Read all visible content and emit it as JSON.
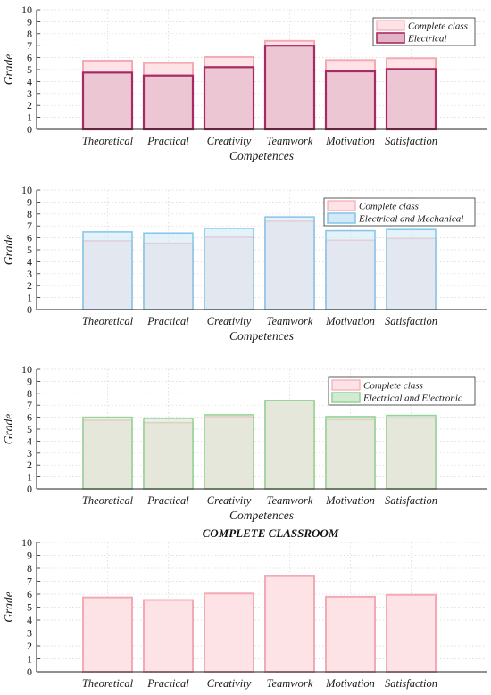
{
  "chart_data": [
    {
      "type": "bar",
      "title": "",
      "xlabel": "Competences",
      "ylabel": "Grade",
      "ylim": [
        0,
        10
      ],
      "yticks": [
        0,
        1,
        2,
        3,
        4,
        5,
        6,
        7,
        8,
        9,
        10
      ],
      "grid": true,
      "legend_position": "top-right",
      "categories": [
        "Theoretical",
        "Practical",
        "Creativity",
        "Teamwork",
        "Motivation",
        "Satisfaction"
      ],
      "series": [
        {
          "name": "Complete class",
          "values": [
            5.75,
            5.55,
            6.05,
            7.4,
            5.8,
            5.95
          ],
          "fill": "#fde3e6",
          "stroke": "#f4aab5",
          "stroke_width": 2
        },
        {
          "name": "Electrical",
          "values": [
            4.75,
            4.5,
            5.2,
            7.0,
            4.85,
            5.05
          ],
          "fill": "#e2b3c6",
          "stroke": "#a82a63",
          "stroke_width": 2.2
        }
      ]
    },
    {
      "type": "bar",
      "title": "",
      "xlabel": "Competences",
      "ylabel": "Grade",
      "ylim": [
        0,
        10
      ],
      "yticks": [
        0,
        1,
        2,
        3,
        4,
        5,
        6,
        7,
        8,
        9,
        10
      ],
      "grid": true,
      "legend_position": "top-right",
      "categories": [
        "Theoretical",
        "Practical",
        "Creativity",
        "Teamwork",
        "Motivation",
        "Satisfaction"
      ],
      "series": [
        {
          "name": "Complete class",
          "values": [
            5.75,
            5.55,
            6.05,
            7.4,
            5.8,
            5.95
          ],
          "fill": "#fde3e6",
          "stroke": "#f4aab5",
          "stroke_width": 1.6
        },
        {
          "name": "Electrical and Mechanical",
          "values": [
            6.5,
            6.4,
            6.8,
            7.75,
            6.6,
            6.7
          ],
          "fill": "#d2e9f7",
          "stroke": "#89c8ea",
          "stroke_width": 1.6
        }
      ]
    },
    {
      "type": "bar",
      "title": "",
      "xlabel": "Competences",
      "ylabel": "Grade",
      "ylim": [
        0,
        10
      ],
      "yticks": [
        0,
        1,
        2,
        3,
        4,
        5,
        6,
        7,
        8,
        9,
        10
      ],
      "grid": true,
      "legend_position": "top-right",
      "categories": [
        "Theoretical",
        "Practical",
        "Creativity",
        "Teamwork",
        "Motivation",
        "Satisfaction"
      ],
      "series": [
        {
          "name": "Complete class",
          "values": [
            5.75,
            5.55,
            6.05,
            7.4,
            5.8,
            5.95
          ],
          "fill": "#fde3e6",
          "stroke": "#f4aab5",
          "stroke_width": 1.6
        },
        {
          "name": "Electrical and Electronic",
          "values": [
            6.0,
            5.9,
            6.2,
            7.4,
            6.05,
            6.15
          ],
          "fill": "#d3ead2",
          "stroke": "#96d59a",
          "stroke_width": 1.6
        }
      ]
    },
    {
      "type": "bar",
      "title": "COMPLETE CLASSROOM",
      "xlabel": "",
      "ylabel": "Grade",
      "ylim": [
        0,
        10
      ],
      "yticks": [
        0,
        1,
        2,
        3,
        4,
        5,
        6,
        7,
        8,
        9,
        10
      ],
      "grid": true,
      "legend_position": "none",
      "categories": [
        "Theoretical",
        "Practical",
        "Creativity",
        "Teamwork",
        "Motivation",
        "Satisfaction"
      ],
      "series": [
        {
          "name": "",
          "values": [
            5.75,
            5.55,
            6.05,
            7.4,
            5.8,
            5.95
          ],
          "fill": "#fde3e6",
          "stroke": "#f4aab5",
          "stroke_width": 2
        }
      ]
    }
  ]
}
